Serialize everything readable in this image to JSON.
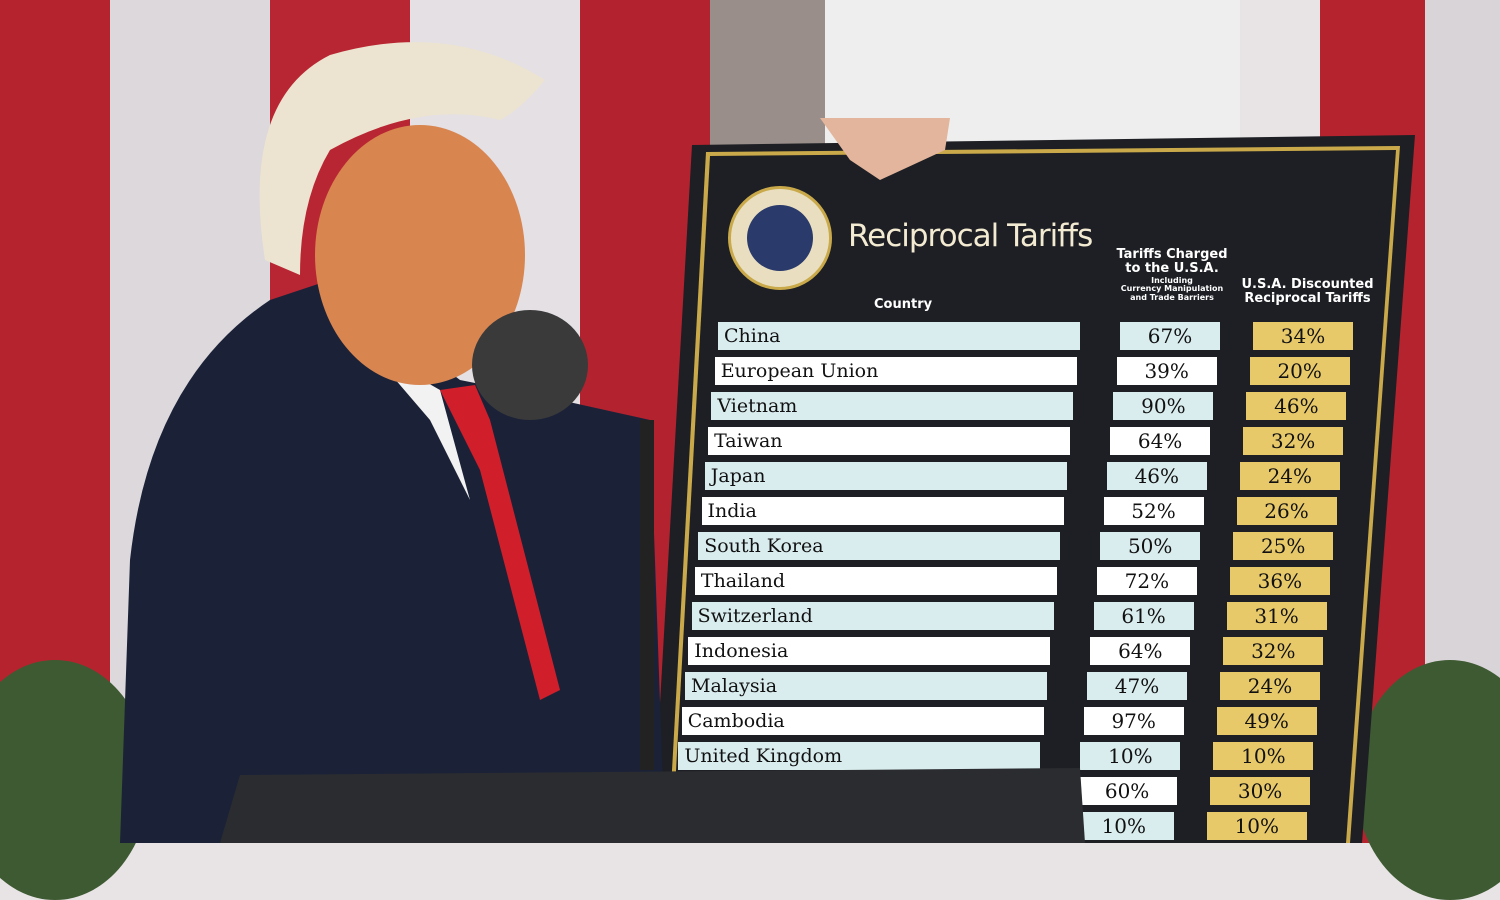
{
  "board": {
    "title": "Reciprocal Tariffs",
    "seal_text": "SEAL OF THE PRESIDENT OF THE UNITED STATES",
    "headers": {
      "country": "Country",
      "charged_line1": "Tariffs Charged",
      "charged_line2": "to the U.S.A.",
      "charged_line3": "Including",
      "charged_line4": "Currency Manipulation",
      "charged_line5": "and Trade Barriers",
      "discounted_line1": "U.S.A. Discounted",
      "discounted_line2": "Reciprocal Tariffs"
    },
    "rows": [
      {
        "country": "China",
        "charged": "67%",
        "discounted": "34%"
      },
      {
        "country": "European Union",
        "charged": "39%",
        "discounted": "20%"
      },
      {
        "country": "Vietnam",
        "charged": "90%",
        "discounted": "46%"
      },
      {
        "country": "Taiwan",
        "charged": "64%",
        "discounted": "32%"
      },
      {
        "country": "Japan",
        "charged": "46%",
        "discounted": "24%"
      },
      {
        "country": "India",
        "charged": "52%",
        "discounted": "26%"
      },
      {
        "country": "South Korea",
        "charged": "50%",
        "discounted": "25%"
      },
      {
        "country": "Thailand",
        "charged": "72%",
        "discounted": "36%"
      },
      {
        "country": "Switzerland",
        "charged": "61%",
        "discounted": "31%"
      },
      {
        "country": "Indonesia",
        "charged": "64%",
        "discounted": "32%"
      },
      {
        "country": "Malaysia",
        "charged": "47%",
        "discounted": "24%"
      },
      {
        "country": "Cambodia",
        "charged": "97%",
        "discounted": "49%"
      },
      {
        "country": "United Kingdom",
        "charged": "10%",
        "discounted": "10%"
      },
      {
        "country": "",
        "charged": "60%",
        "discounted": "30%"
      },
      {
        "country": "",
        "charged": "10%",
        "discounted": "10%"
      }
    ],
    "colors": {
      "board": "#1d1f24",
      "name_odd": "#d9ecee",
      "name_even": "#ffffff",
      "discount": "#e8c96a",
      "gold": "#c9a94a"
    }
  }
}
